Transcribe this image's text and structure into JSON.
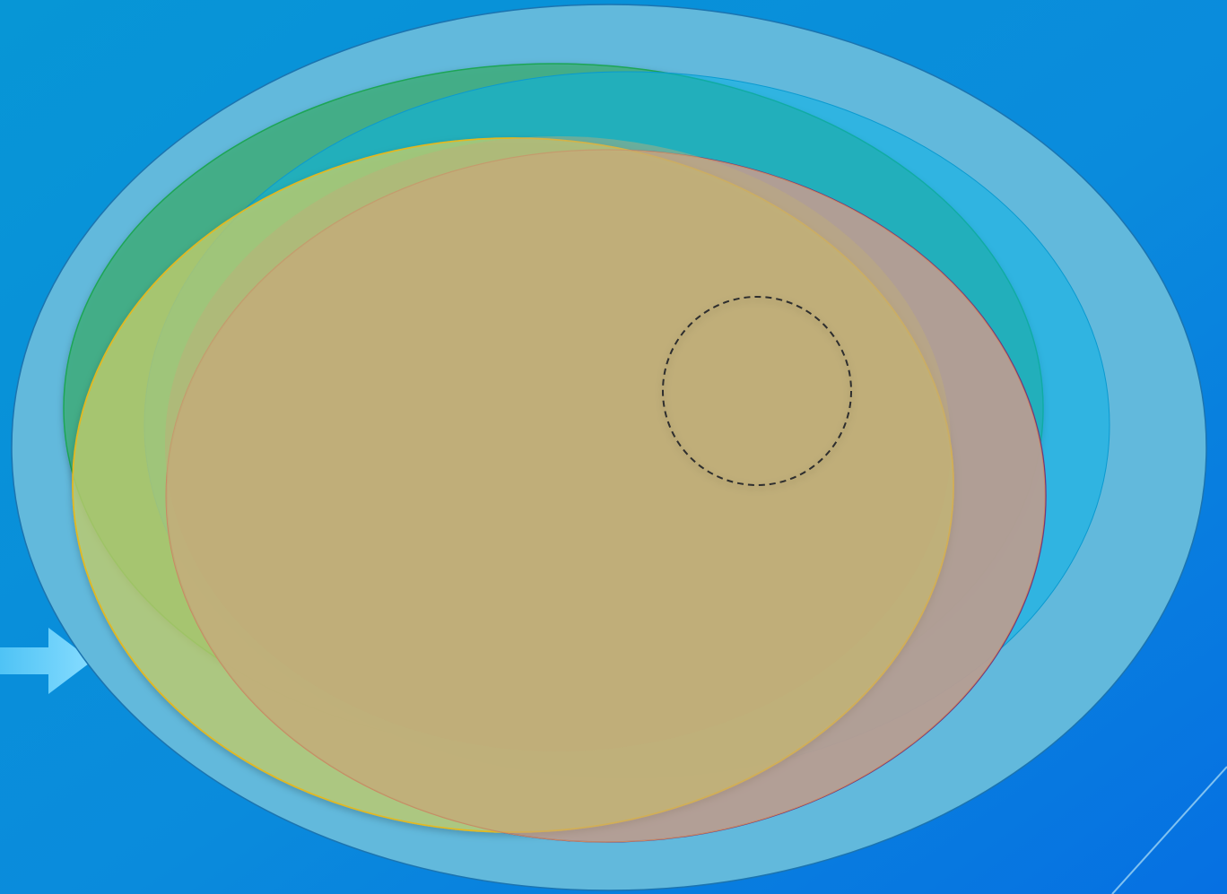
{
  "diagram": {
    "type": "nested-ellipses",
    "labels": [],
    "shapes": [
      {
        "name": "outer-ellipse",
        "fill": "#62B9DC",
        "stroke": "#1B74B0"
      },
      {
        "name": "green-ellipse",
        "fill": "#4EB08A",
        "stroke": "#1FA556"
      },
      {
        "name": "cyan-ellipse",
        "fill": "#0FAFE0",
        "stroke": "#0A9AD0"
      },
      {
        "name": "purple-ellipse",
        "fill": "#8C94C4",
        "stroke": "#6E3A7E"
      },
      {
        "name": "yellow-ellipse",
        "fill": "#BFD17A",
        "stroke": "#E2B820"
      },
      {
        "name": "tan-ellipse",
        "fill": "#C2AD7A",
        "stroke": "#C98A64"
      },
      {
        "name": "dashed-circle",
        "fill": "none",
        "stroke": "#333333"
      }
    ]
  },
  "decor": {
    "background_top": "#0A8FD8",
    "background_bottom": "#0772E0",
    "arrow_color": "#7DD8FF",
    "arrow_icon": "right-arrow-icon"
  }
}
